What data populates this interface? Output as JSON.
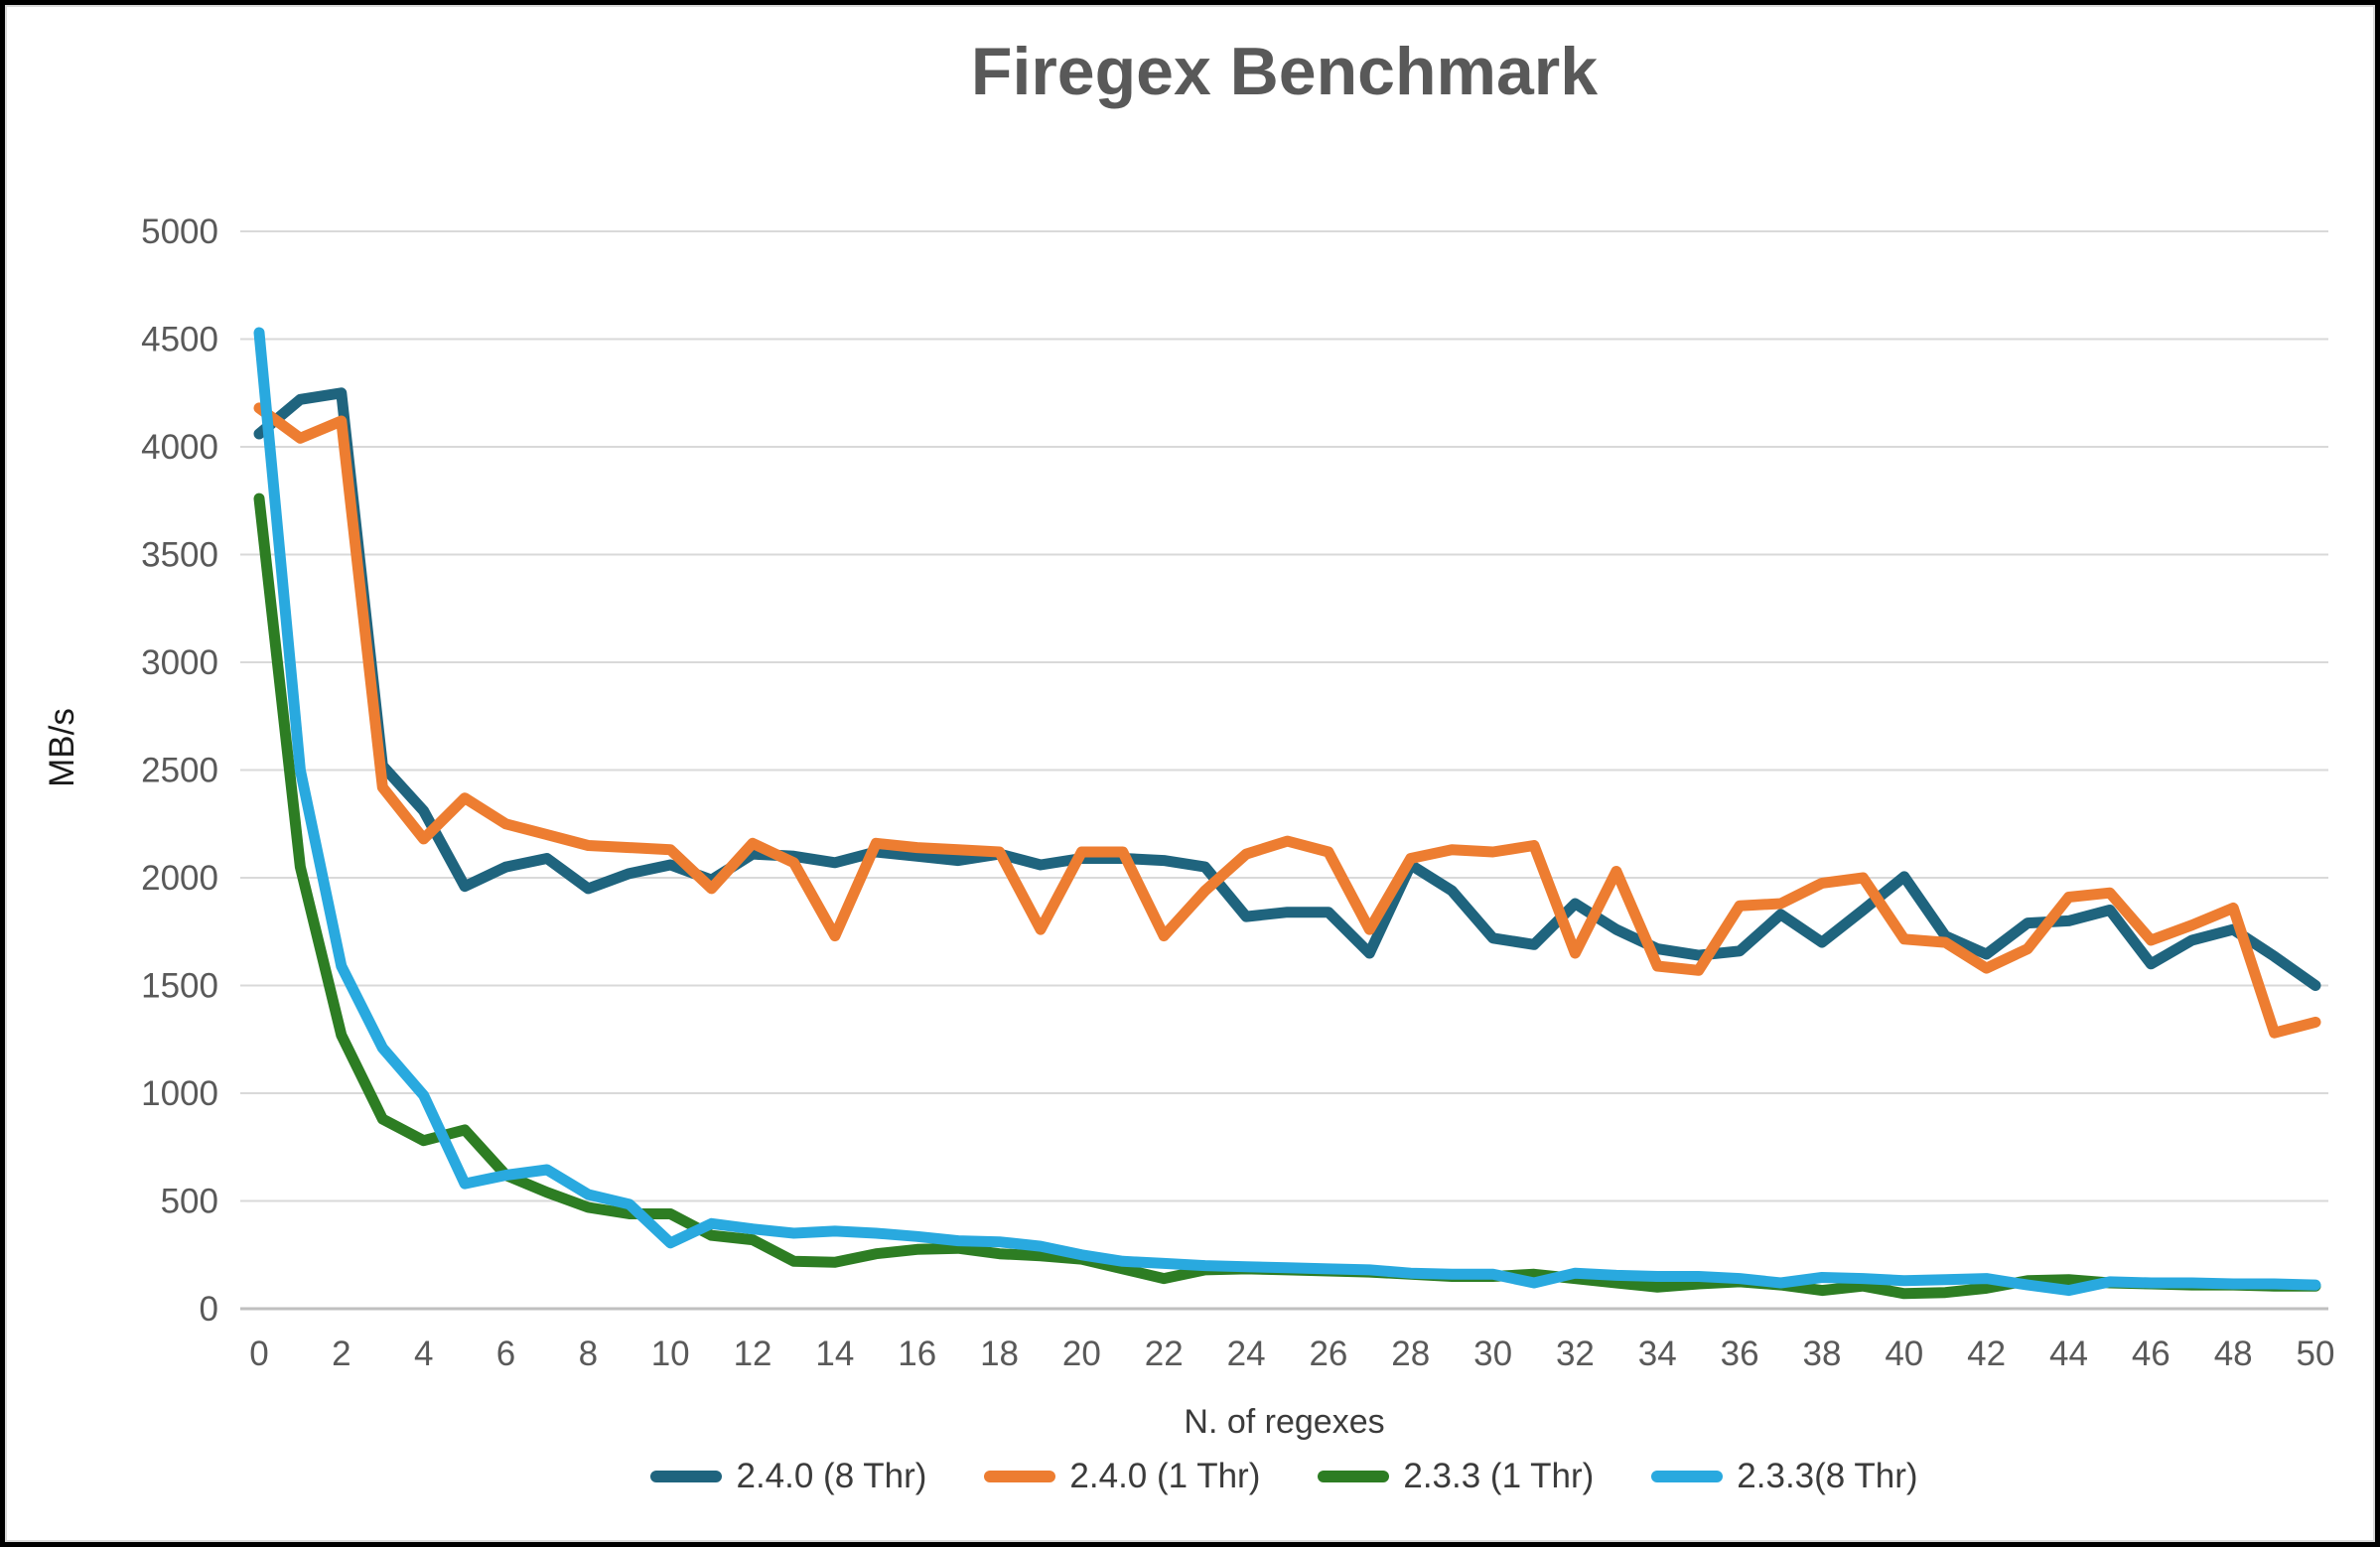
{
  "title": "Firegex Benchmark",
  "colors": {
    "accent_blue": "#1f647e",
    "accent_orange": "#ed7d31",
    "accent_green": "#2d7d23",
    "accent_cyan": "#29a9df",
    "title_text": "#595959",
    "tick_text": "#595959",
    "axis_title_text": "#3b3b3b",
    "gridline": "#d9d9d9",
    "baseline": "#bfbfbf",
    "frame_border": "#000000",
    "inner_border": "#d9d9d9"
  },
  "chart_data": {
    "type": "line",
    "title": "Firegex Benchmark",
    "xlabel": "N. of regexes",
    "ylabel": "MB/s",
    "xlim": [
      0,
      50
    ],
    "ylim": [
      0,
      5000
    ],
    "x_ticks": [
      0,
      2,
      4,
      6,
      8,
      10,
      12,
      14,
      16,
      18,
      20,
      22,
      24,
      26,
      28,
      30,
      32,
      34,
      36,
      38,
      40,
      42,
      44,
      46,
      48,
      50
    ],
    "y_ticks": [
      0,
      500,
      1000,
      1500,
      2000,
      2500,
      3000,
      3500,
      4000,
      4500,
      5000
    ],
    "grid": "horizontal",
    "legend_position": "bottom",
    "x": [
      0,
      1,
      2,
      3,
      4,
      5,
      6,
      7,
      8,
      9,
      10,
      11,
      12,
      13,
      14,
      15,
      16,
      17,
      18,
      19,
      20,
      21,
      22,
      23,
      24,
      25,
      26,
      27,
      28,
      29,
      30,
      31,
      32,
      33,
      34,
      35,
      36,
      37,
      38,
      39,
      40,
      41,
      42,
      43,
      44,
      45,
      46,
      47,
      48,
      49,
      50
    ],
    "series": [
      {
        "name": "2.4.0 (8 Thr)",
        "color": "#1f647e",
        "values": [
          4060,
          4220,
          4250,
          2520,
          2310,
          1960,
          2050,
          2090,
          1950,
          2020,
          2060,
          1990,
          2110,
          2100,
          2070,
          2120,
          2100,
          2080,
          2110,
          2060,
          2090,
          2090,
          2080,
          2050,
          1820,
          1840,
          1840,
          1650,
          2060,
          1940,
          1720,
          1690,
          1880,
          1760,
          1670,
          1640,
          1660,
          1830,
          1700,
          1850,
          2005,
          1730,
          1645,
          1790,
          1800,
          1850,
          1600,
          1710,
          1760,
          1635,
          1500
        ]
      },
      {
        "name": "2.4.0 (1 Thr)",
        "color": "#ed7d31",
        "values": [
          4180,
          4040,
          4120,
          2420,
          2180,
          2370,
          2250,
          2200,
          2150,
          2140,
          2130,
          1950,
          2160,
          2070,
          1730,
          2160,
          2140,
          2130,
          2120,
          1760,
          2120,
          2120,
          1730,
          1940,
          2110,
          2170,
          2120,
          1760,
          2090,
          2130,
          2120,
          2150,
          1650,
          2030,
          1590,
          1570,
          1870,
          1880,
          1975,
          2000,
          1715,
          1700,
          1580,
          1670,
          1910,
          1930,
          1710,
          1780,
          1860,
          1280,
          1330
        ]
      },
      {
        "name": "2.3.3 (1 Thr)",
        "color": "#2d7d23",
        "values": [
          3760,
          2050,
          1270,
          880,
          780,
          830,
          620,
          540,
          470,
          440,
          440,
          340,
          320,
          220,
          215,
          255,
          275,
          280,
          255,
          245,
          230,
          185,
          140,
          180,
          185,
          180,
          175,
          170,
          160,
          150,
          150,
          160,
          140,
          120,
          100,
          115,
          125,
          110,
          85,
          105,
          70,
          75,
          95,
          130,
          135,
          120,
          115,
          110,
          110,
          105,
          105
        ]
      },
      {
        "name": "2.3.3(8 Thr)",
        "color": "#29a9df",
        "values": [
          4530,
          2500,
          1590,
          1210,
          990,
          580,
          620,
          645,
          530,
          485,
          305,
          395,
          370,
          350,
          360,
          350,
          335,
          315,
          310,
          290,
          250,
          220,
          210,
          200,
          195,
          190,
          185,
          180,
          165,
          160,
          160,
          120,
          165,
          155,
          150,
          150,
          140,
          120,
          145,
          140,
          130,
          135,
          140,
          110,
          85,
          125,
          120,
          120,
          115,
          115,
          110
        ]
      }
    ]
  }
}
